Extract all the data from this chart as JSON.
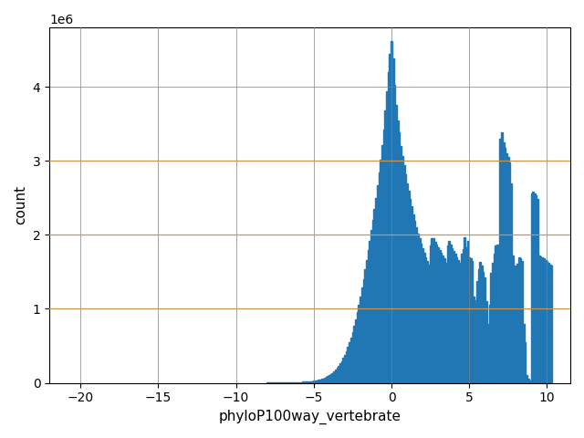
{
  "xlabel": "phyloP100way_vertebrate",
  "ylabel": "count",
  "bar_color": "#2077b4",
  "figsize": [
    6.4,
    4.8
  ],
  "dpi": 100,
  "orange_lines": [
    1000000,
    2000000,
    3000000
  ],
  "xticks": [
    -20,
    -15,
    -10,
    -5,
    0,
    5,
    10
  ],
  "xlim": [
    -22,
    11.5
  ],
  "ylim": [
    0,
    4800000
  ],
  "bin_width": 0.1,
  "bins_data": {
    "-8.0": 2000,
    "-7.9": 2200,
    "-7.8": 2400,
    "-7.7": 2500,
    "-7.6": 2600,
    "-7.5": 2800,
    "-7.4": 3000,
    "-7.3": 3200,
    "-7.2": 3400,
    "-7.1": 3600,
    "-7.0": 3800,
    "-6.9": 4200,
    "-6.8": 4500,
    "-6.7": 4900,
    "-6.6": 5300,
    "-6.5": 5800,
    "-6.4": 6400,
    "-6.3": 7000,
    "-6.2": 7800,
    "-6.1": 8600,
    "-6.0": 9500,
    "-5.9": 10500,
    "-5.8": 11500,
    "-5.7": 12800,
    "-5.6": 14200,
    "-5.5": 15800,
    "-5.4": 17500,
    "-5.3": 19500,
    "-5.2": 21800,
    "-5.1": 24500,
    "-5.0": 27500,
    "-4.9": 31000,
    "-4.8": 35000,
    "-4.7": 40000,
    "-4.6": 45000,
    "-4.5": 51000,
    "-4.4": 58000,
    "-4.3": 66000,
    "-4.2": 76000,
    "-4.1": 87000,
    "-4.0": 100000,
    "-3.9": 115000,
    "-3.8": 132000,
    "-3.7": 152000,
    "-3.6": 175000,
    "-3.5": 200000,
    "-3.4": 228000,
    "-3.3": 260000,
    "-3.2": 295000,
    "-3.1": 335000,
    "-3.0": 380000,
    "-2.9": 430000,
    "-2.8": 485000,
    "-2.7": 545000,
    "-2.6": 615000,
    "-2.5": 690000,
    "-2.4": 770000,
    "-2.3": 860000,
    "-2.2": 960000,
    "-2.1": 1060000,
    "-2.0": 1170000,
    "-1.9": 1285000,
    "-1.8": 1405000,
    "-1.7": 1530000,
    "-1.6": 1660000,
    "-1.5": 1790000,
    "-1.4": 1920000,
    "-1.3": 2060000,
    "-1.2": 2200000,
    "-1.1": 2350000,
    "-1.0": 2500000,
    "-0.9": 2670000,
    "-0.8": 2840000,
    "-0.7": 3020000,
    "-0.6": 3210000,
    "-0.5": 3420000,
    "-0.4": 3680000,
    "-0.3": 3940000,
    "-0.2": 4200000,
    "-0.1": 4450000,
    "0.0": 4620000,
    "0.1": 4380000,
    "0.2": 4020000,
    "0.3": 3750000,
    "0.4": 3540000,
    "0.5": 3380000,
    "0.6": 3200000,
    "0.7": 3060000,
    "0.8": 2940000,
    "0.9": 2820000,
    "1.0": 2700000,
    "1.1": 2590000,
    "1.2": 2480000,
    "1.3": 2380000,
    "1.4": 2280000,
    "1.5": 2190000,
    "1.6": 2100000,
    "1.7": 2020000,
    "1.8": 1950000,
    "1.9": 1880000,
    "2.0": 1820000,
    "2.1": 1760000,
    "2.2": 1700000,
    "2.3": 1650000,
    "2.4": 1600000,
    "2.5": 1850000,
    "2.6": 1950000,
    "2.7": 1950000,
    "2.8": 1900000,
    "2.9": 1870000,
    "3.0": 1830000,
    "3.1": 1790000,
    "3.2": 1760000,
    "3.3": 1720000,
    "3.4": 1680000,
    "3.5": 1620000,
    "3.6": 1850000,
    "3.7": 1920000,
    "3.8": 1870000,
    "3.9": 1820000,
    "4.0": 1780000,
    "4.1": 1740000,
    "4.2": 1700000,
    "4.3": 1660000,
    "4.4": 1620000,
    "4.5": 1750000,
    "4.6": 1810000,
    "4.7": 1970000,
    "4.8": 1830000,
    "4.9": 1920000,
    "5.0": 1700000,
    "5.1": 1680000,
    "5.2": 1650000,
    "5.3": 1160000,
    "5.4": 1120000,
    "5.5": 1380000,
    "5.6": 1540000,
    "5.7": 1630000,
    "5.8": 1580000,
    "5.9": 1500000,
    "6.0": 1430000,
    "6.1": 1100000,
    "6.2": 800000,
    "6.3": 1050000,
    "6.4": 1480000,
    "6.5": 1620000,
    "6.6": 1750000,
    "6.7": 1850000,
    "6.8": 1870000,
    "6.9": 1840000,
    "7.0": 3300000,
    "7.1": 3380000,
    "7.2": 3250000,
    "7.3": 3180000,
    "7.4": 3100000,
    "7.5": 3050000,
    "7.6": 2980000,
    "7.7": 2700000,
    "7.8": 1720000,
    "7.9": 1580000,
    "8.0": 1540000,
    "8.1": 1610000,
    "8.2": 1700000,
    "8.3": 1680000,
    "8.4": 1640000,
    "8.5": 800000,
    "8.6": 550000,
    "8.7": 100000,
    "8.8": 50000,
    "8.9": 30000,
    "9.0": 2560000,
    "9.1": 2580000,
    "9.2": 2560000,
    "9.3": 2530000,
    "9.4": 2490000,
    "9.5": 1720000,
    "9.6": 1710000,
    "9.7": 1690000,
    "9.8": 1680000,
    "9.9": 1660000,
    "10.0": 1640000,
    "10.1": 1620000,
    "10.2": 1600000,
    "10.3": 1580000
  }
}
